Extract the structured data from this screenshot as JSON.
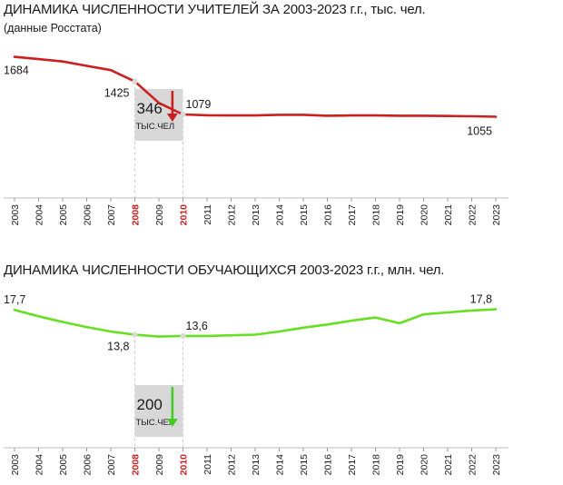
{
  "chart_data": [
    {
      "type": "line",
      "title": "ДИНАМИКА ЧИСЛЕННОСТИ УЧИТЕЛЕЙ ЗА 2003-2023 г.г., тыс. чел.",
      "subtitle": "(данные Росстата)",
      "x": [
        2003,
        2004,
        2005,
        2006,
        2007,
        2008,
        2009,
        2010,
        2011,
        2012,
        2013,
        2014,
        2015,
        2016,
        2017,
        2018,
        2019,
        2020,
        2021,
        2022,
        2023
      ],
      "series": [
        {
          "values": [
            1684,
            1660,
            1635,
            1590,
            1545,
            1425,
            1200,
            1079,
            1070,
            1068,
            1068,
            1075,
            1075,
            1065,
            1068,
            1068,
            1065,
            1065,
            1062,
            1060,
            1055
          ]
        }
      ],
      "ylim": [
        200,
        1900
      ],
      "color": "#cc1f1f",
      "highlight_years": [
        2008,
        2010
      ],
      "point_labels": [
        {
          "year": 2003,
          "text": "1684"
        },
        {
          "year": 2008,
          "text": "1425"
        },
        {
          "year": 2010,
          "text": "1079"
        },
        {
          "year": 2023,
          "text": "1055"
        }
      ],
      "annotation": {
        "value": "346",
        "unit": "ТЫС.ЧЕЛ",
        "direction": "down",
        "color": "#cc1f1f"
      }
    },
    {
      "type": "line",
      "title": "ДИНАМИКА ЧИСЛЕННОСТИ ОБУЧАЮЩИХСЯ 2003-2023 г.г., млн. чел.",
      "x": [
        2003,
        2004,
        2005,
        2006,
        2007,
        2008,
        2009,
        2010,
        2011,
        2012,
        2013,
        2014,
        2015,
        2016,
        2017,
        2018,
        2019,
        2020,
        2021,
        2022,
        2023
      ],
      "series": [
        {
          "values": [
            17.7,
            16.7,
            15.8,
            15.0,
            14.3,
            13.8,
            13.5,
            13.6,
            13.6,
            13.7,
            13.8,
            14.3,
            14.9,
            15.4,
            16.0,
            16.5,
            15.6,
            17.0,
            17.3,
            17.6,
            17.8
          ]
        }
      ],
      "ylim": [
        -4,
        19.3
      ],
      "color": "#66e021",
      "highlight_years": [
        2008,
        2010
      ],
      "point_labels": [
        {
          "year": 2003,
          "text": "17,7"
        },
        {
          "year": 2008,
          "text": "13,8"
        },
        {
          "year": 2010,
          "text": "13,6"
        },
        {
          "year": 2023,
          "text": "17,8"
        }
      ],
      "annotation": {
        "value": "200",
        "unit": "ТЫС.ЧЕЛ",
        "direction": "down",
        "color": "#44cc22"
      }
    }
  ]
}
